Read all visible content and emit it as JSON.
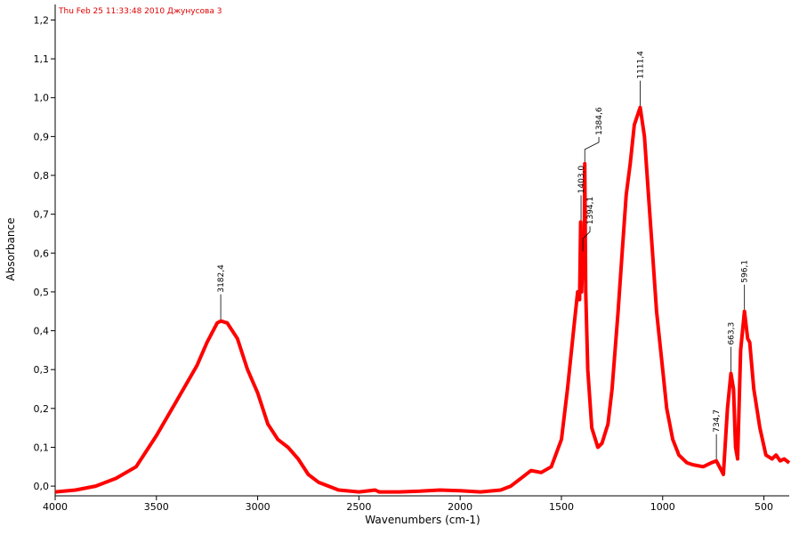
{
  "chart_data": {
    "type": "line",
    "title": "Thu Feb 25 11:33:48 2010 Джунусова 3",
    "xlabel": "Wavenumbers (cm-1)",
    "ylabel": "Absorbance",
    "color": "#ff0000",
    "xlim": [
      4000,
      375
    ],
    "ylim": [
      -0.025,
      1.24
    ],
    "xticks": [
      4000,
      3500,
      3000,
      2500,
      2000,
      1500,
      1000,
      500
    ],
    "yticks": [
      {
        "value": 0.0,
        "label": "0,0"
      },
      {
        "value": 0.1,
        "label": "0,1"
      },
      {
        "value": 0.2,
        "label": "0,2"
      },
      {
        "value": 0.3,
        "label": "0,3"
      },
      {
        "value": 0.4,
        "label": "0,4"
      },
      {
        "value": 0.5,
        "label": "0,5"
      },
      {
        "value": 0.6,
        "label": "0,6"
      },
      {
        "value": 0.7,
        "label": "0,7"
      },
      {
        "value": 0.8,
        "label": "0,8"
      },
      {
        "value": 0.9,
        "label": "0,9"
      },
      {
        "value": 1.0,
        "label": "1,0"
      },
      {
        "value": 1.1,
        "label": "1,1"
      },
      {
        "value": 1.2,
        "label": "1,2"
      }
    ],
    "x": [
      4000,
      3900,
      3800,
      3700,
      3600,
      3500,
      3400,
      3300,
      3250,
      3200,
      3182,
      3150,
      3100,
      3050,
      3000,
      2950,
      2900,
      2850,
      2800,
      2750,
      2700,
      2600,
      2500,
      2420,
      2400,
      2300,
      2200,
      2100,
      2000,
      1900,
      1800,
      1750,
      1700,
      1650,
      1600,
      1550,
      1500,
      1470,
      1440,
      1420,
      1410,
      1405,
      1400,
      1394,
      1388,
      1384.6,
      1380,
      1370,
      1350,
      1320,
      1300,
      1270,
      1250,
      1220,
      1200,
      1180,
      1160,
      1140,
      1111,
      1090,
      1070,
      1050,
      1030,
      1000,
      980,
      950,
      920,
      880,
      850,
      800,
      760,
      735,
      710,
      700,
      680,
      663,
      650,
      640,
      630,
      615,
      596,
      580,
      570,
      550,
      520,
      490,
      460,
      440,
      420,
      400,
      375
    ],
    "values": [
      -0.015,
      -0.01,
      0.0,
      0.02,
      0.05,
      0.13,
      0.22,
      0.31,
      0.37,
      0.42,
      0.425,
      0.42,
      0.38,
      0.3,
      0.24,
      0.16,
      0.12,
      0.1,
      0.07,
      0.03,
      0.01,
      -0.01,
      -0.015,
      -0.01,
      -0.015,
      -0.015,
      -0.013,
      -0.01,
      -0.012,
      -0.015,
      -0.01,
      0.0,
      0.02,
      0.04,
      0.035,
      0.05,
      0.12,
      0.25,
      0.4,
      0.5,
      0.48,
      0.68,
      0.5,
      0.6,
      0.55,
      0.83,
      0.5,
      0.3,
      0.15,
      0.1,
      0.11,
      0.16,
      0.25,
      0.45,
      0.6,
      0.75,
      0.83,
      0.93,
      0.975,
      0.9,
      0.75,
      0.6,
      0.45,
      0.3,
      0.2,
      0.12,
      0.08,
      0.06,
      0.055,
      0.05,
      0.06,
      0.065,
      0.04,
      0.03,
      0.2,
      0.29,
      0.25,
      0.1,
      0.07,
      0.35,
      0.45,
      0.38,
      0.37,
      0.25,
      0.15,
      0.08,
      0.07,
      0.08,
      0.065,
      0.07,
      0.06
    ],
    "annotations": [
      {
        "x": 3182.4,
        "y": 0.425,
        "label": "3182,4"
      },
      {
        "x": 1403.0,
        "y": 0.68,
        "label": "1403,0"
      },
      {
        "x": 1394.1,
        "y": 0.6,
        "label": "1394,1"
      },
      {
        "x": 1384.6,
        "y": 0.83,
        "label": "1384,6"
      },
      {
        "x": 1111.4,
        "y": 0.975,
        "label": "1111,4"
      },
      {
        "x": 734.7,
        "y": 0.065,
        "label": "734,7"
      },
      {
        "x": 663.3,
        "y": 0.29,
        "label": "663,3"
      },
      {
        "x": 596.1,
        "y": 0.45,
        "label": "596,1"
      }
    ]
  }
}
